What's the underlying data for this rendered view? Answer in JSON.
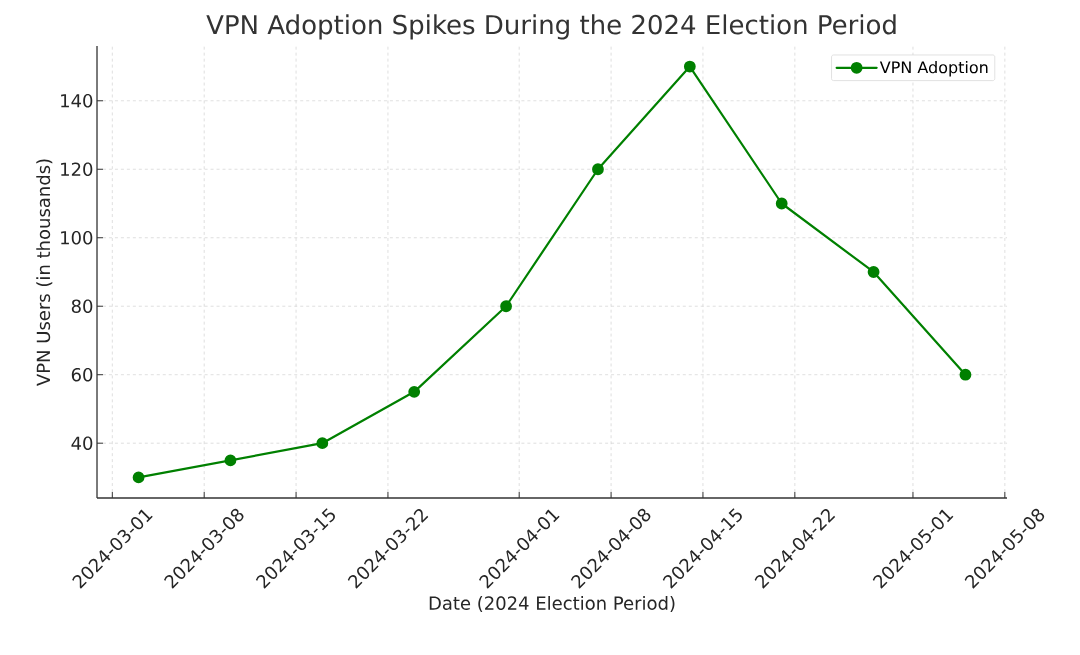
{
  "chart_data": {
    "type": "line",
    "title": "VPN Adoption Spikes During the 2024 Election Period",
    "xlabel": "Date (2024 Election Period)",
    "ylabel": "VPN Users (in thousands)",
    "x": [
      "2024-03-03",
      "2024-03-10",
      "2024-03-17",
      "2024-03-24",
      "2024-03-31",
      "2024-04-07",
      "2024-04-14",
      "2024-04-21",
      "2024-04-28",
      "2024-05-05"
    ],
    "series": [
      {
        "name": "VPN Adoption",
        "color": "#008000",
        "values": [
          30,
          35,
          40,
          55,
          80,
          120,
          150,
          110,
          90,
          60
        ]
      }
    ],
    "xlim": [
      "2024-02-28T20:00",
      "2024-05-08T04:00"
    ],
    "ylim": [
      24,
      156
    ],
    "xticks": [
      "2024-03-01",
      "2024-03-08",
      "2024-03-15",
      "2024-03-22",
      "2024-04-01",
      "2024-04-08",
      "2024-04-15",
      "2024-04-22",
      "2024-05-01",
      "2024-05-08"
    ],
    "yticks": [
      40,
      60,
      80,
      100,
      120,
      140
    ],
    "grid": true,
    "legend": "top right",
    "marker": "circle",
    "line_style": "solid"
  }
}
